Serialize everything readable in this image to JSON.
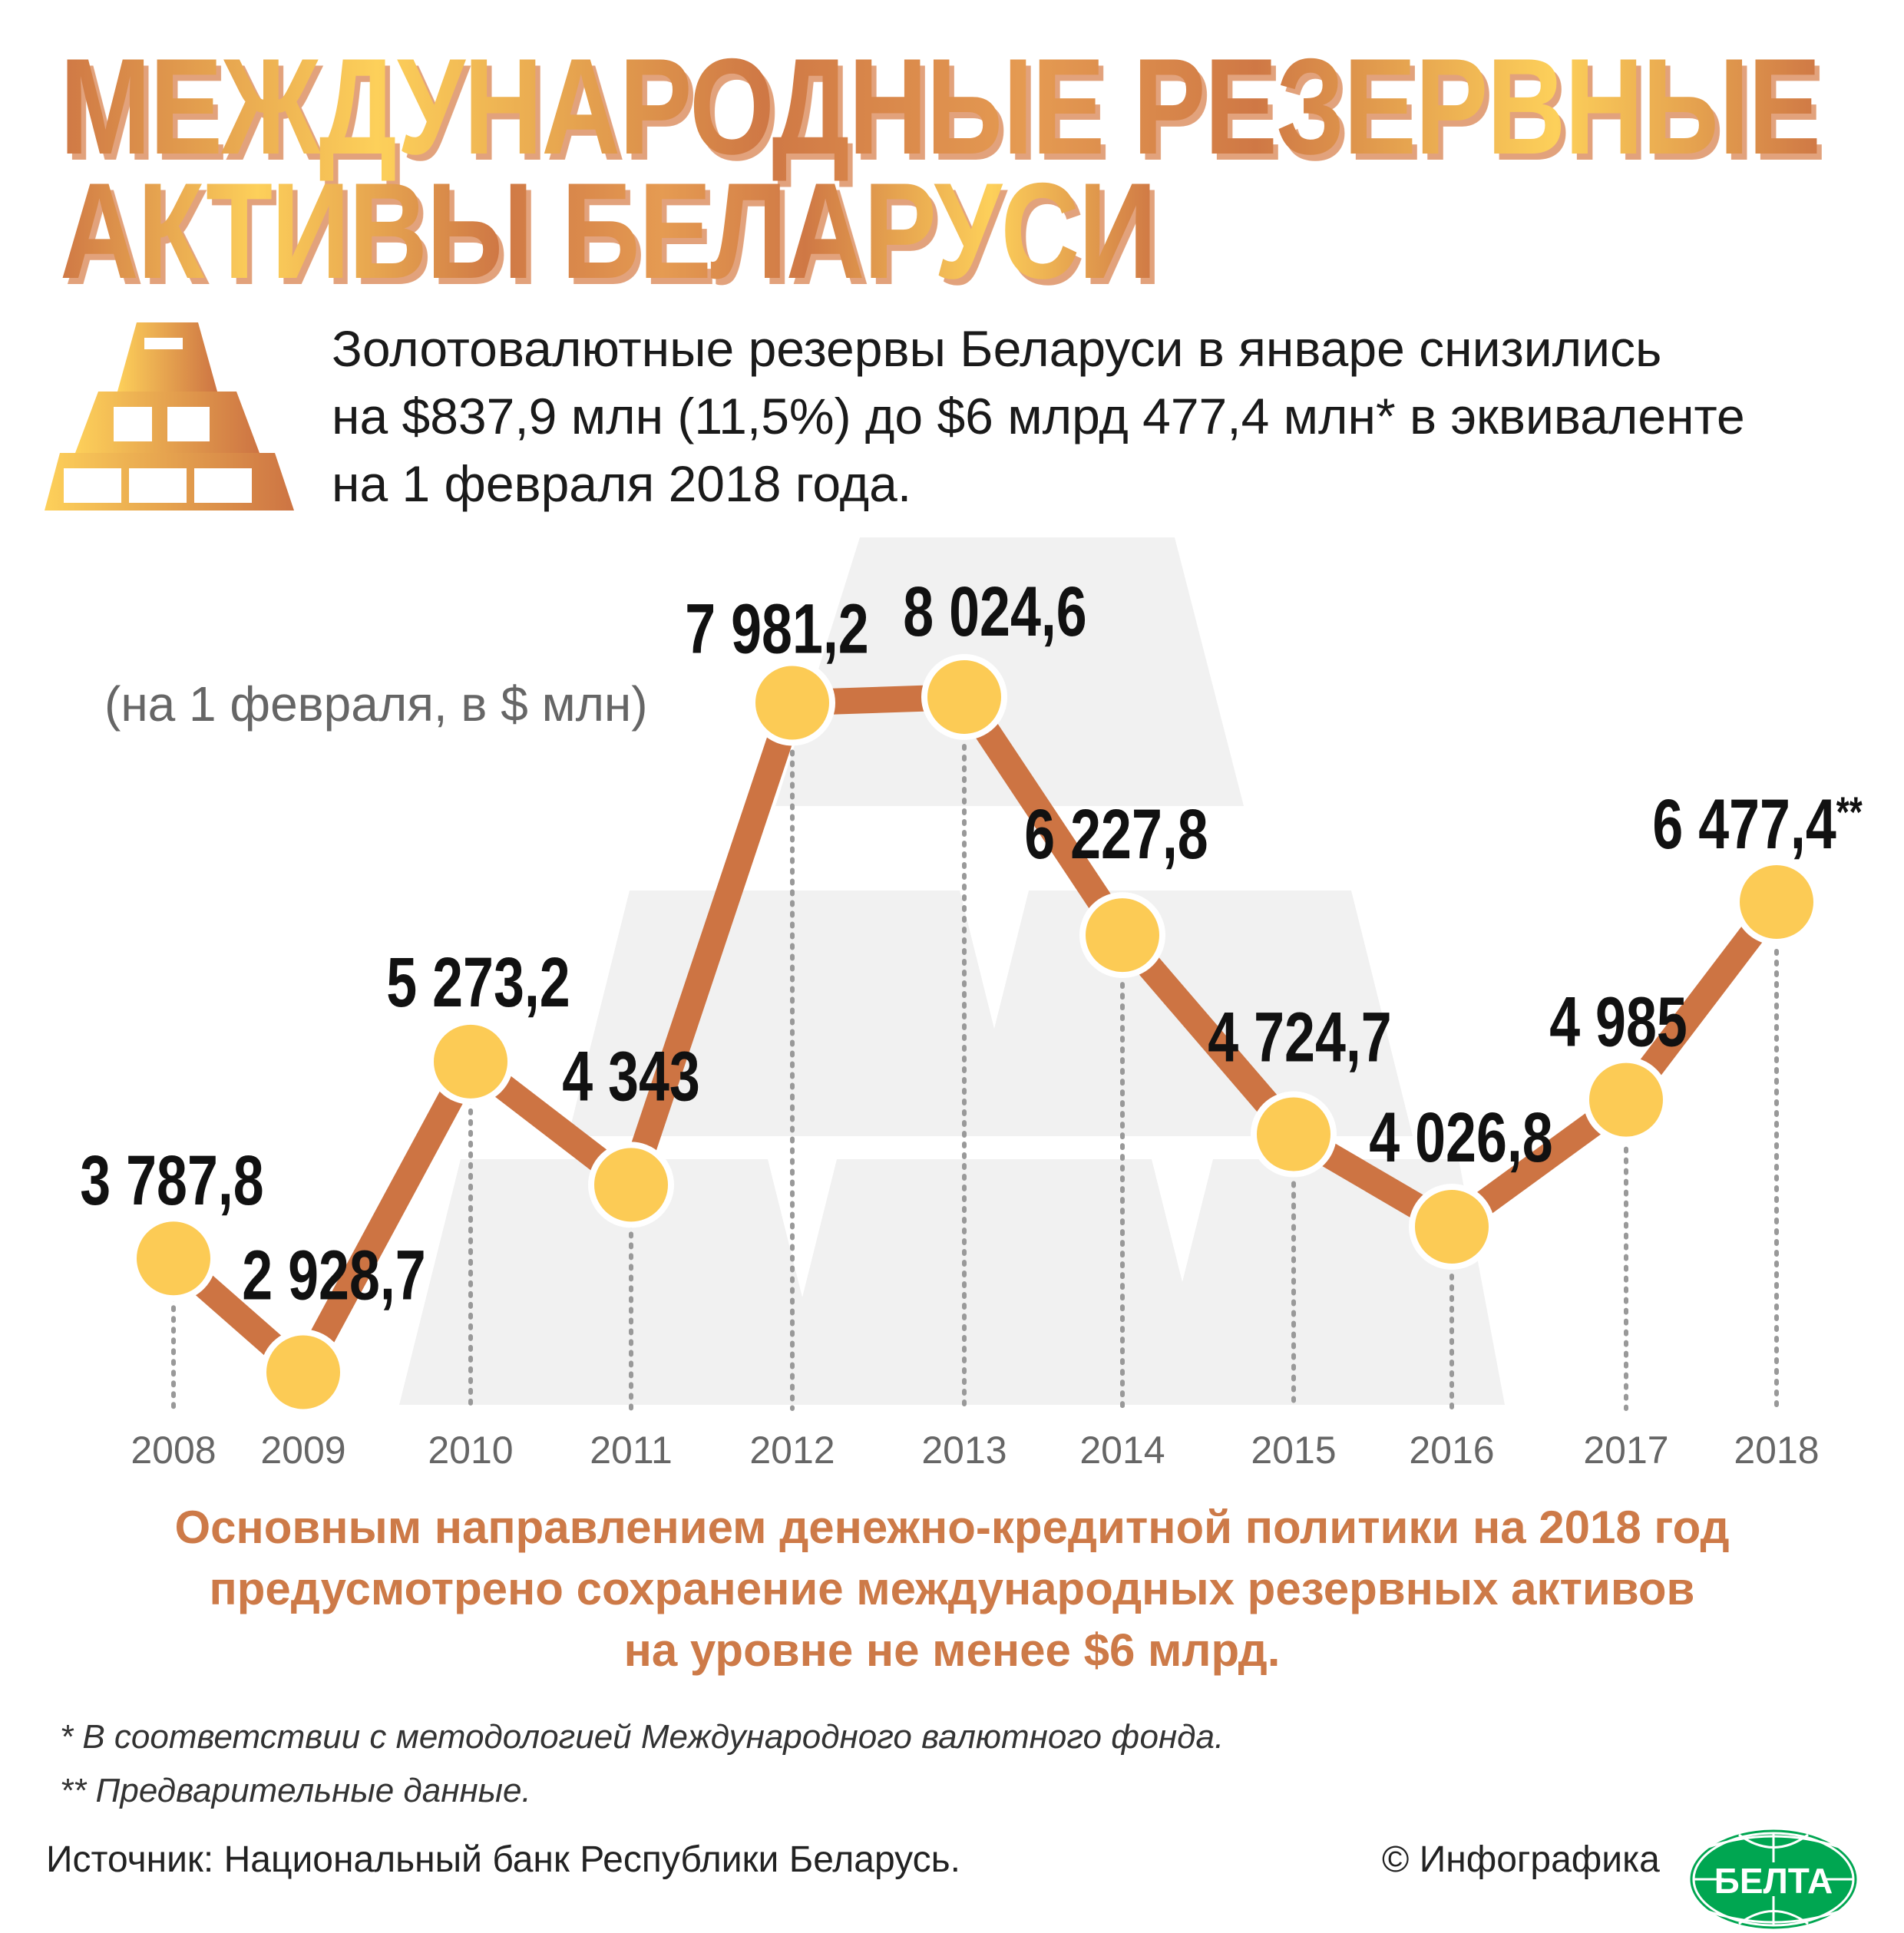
{
  "title": {
    "line1": "МЕЖДУНАРОДНЫЕ РЕЗЕРВНЫЕ",
    "line2": "АКТИВЫ БЕЛАРУСИ"
  },
  "lead": {
    "line1": "Золотовалютные резервы Беларуси в январе снизились",
    "line2": "на $837,9 млн  (11,5%) до $6 млрд 477,4 млн* в эквиваленте",
    "line3": "на 1 февраля 2018 года."
  },
  "chart_data": {
    "type": "line",
    "title": "Международные резервные активы Беларуси",
    "unit_label": "(на 1 февраля, в $ млн)",
    "x": [
      "2008",
      "2009",
      "2010",
      "2011",
      "2012",
      "2013",
      "2014",
      "2015",
      "2016",
      "2017",
      "2018"
    ],
    "values": [
      3787.8,
      2928.7,
      5273.2,
      4343,
      7981.2,
      8024.6,
      6227.8,
      4724.7,
      4026.8,
      4985,
      6477.4
    ],
    "labels": [
      "3 787,8",
      "2 928,7",
      "5 273,2",
      "4 343",
      "7 981,2",
      "8 024,6",
      "6 227,8",
      "4 724,7",
      "4 026,8",
      "4 985",
      "6 477,4"
    ],
    "last_label_mark": "**",
    "line_color": "#cd7443",
    "marker_color": "#fccb55",
    "grid": false
  },
  "policy": {
    "line1": "Основным направлением денежно-кредитной политики на 2018 год",
    "line2": "предусмотрено сохранение международных резервных активов",
    "line3": "на уровне не менее $6 млрд."
  },
  "notes": {
    "n1": "* В соответствии с методологией Международного валютного фонда.",
    "n2": "** Предварительные данные."
  },
  "footer": {
    "source": "Источник: Национальный банк Республики Беларусь.",
    "credit": "© Инфографика",
    "logo_text": "БЕЛТА"
  },
  "colors": {
    "accent": "#cd7a48",
    "gold": "#fccb55",
    "logo_green": "#00a651"
  }
}
